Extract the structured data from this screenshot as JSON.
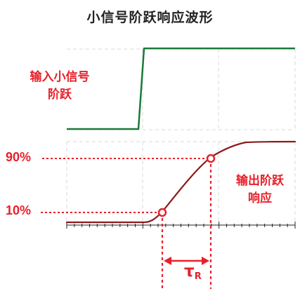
{
  "title": "小信号阶跃响应波形",
  "input_label_line1": "输入小信号",
  "input_label_line2": "阶跃",
  "output_label_line1": "输出阶跃",
  "output_label_line2": "响应",
  "level_90": "90%",
  "level_10": "10%",
  "rise_time_symbol": "τ",
  "rise_time_subscript": "R",
  "colors": {
    "input_trace": "#1a7a3a",
    "output_trace": "#8b1a1a",
    "annotation": "#e8202a",
    "grid": "#d8d8d8",
    "axis": "#222222"
  }
}
